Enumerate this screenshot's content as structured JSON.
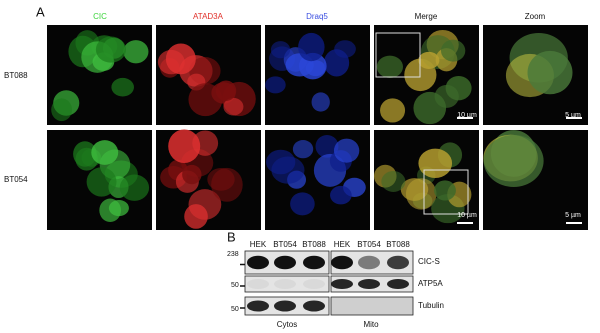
{
  "panel_a": {
    "label": "A",
    "columns": [
      "CIC",
      "ATAD3A",
      "Draq5",
      "Merge",
      "Zoom"
    ],
    "rows": [
      {
        "label": "BT088",
        "scale_bars": [
          "10 µm",
          "5 µm"
        ]
      },
      {
        "label": "BT054",
        "scale_bars": [
          "10 µm",
          "5 µm"
        ]
      }
    ]
  },
  "panel_b": {
    "label": "B",
    "lanes": [
      "HEK",
      "BT054",
      "BT088",
      "HEK",
      "BT054",
      "BT088"
    ],
    "markers": [
      "238",
      "50",
      "50"
    ],
    "bands": [
      "CIC-S",
      "ATP5A",
      "Tubulin"
    ],
    "fractions": [
      "Cytos",
      "Mito"
    ]
  }
}
